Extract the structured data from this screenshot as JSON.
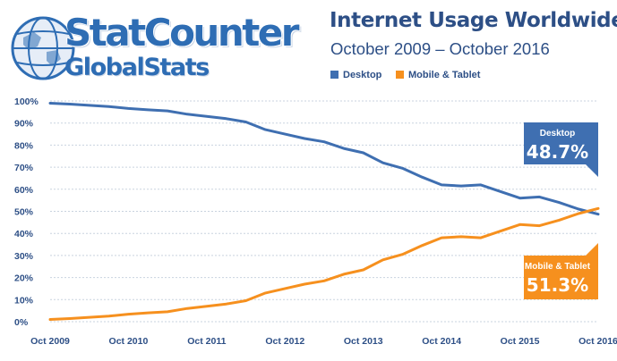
{
  "logo": {
    "line1": "StatCounter",
    "line2": "GlobalStats"
  },
  "colors": {
    "desktop": "#3f6fb1",
    "mobile": "#f6901e",
    "text": "#2d4f86",
    "grid": "#c9d3df"
  },
  "chart_data": {
    "type": "line",
    "title": "Internet Usage Worldwide",
    "subtitle": "October 2009 – October 2016",
    "x_tick_labels": [
      "Oct 2009",
      "Oct 2010",
      "Oct 2011",
      "Oct 2012",
      "Oct 2013",
      "Oct 2014",
      "Oct 2015",
      "Oct 2016"
    ],
    "y_tick_labels": [
      "0%",
      "10%",
      "20%",
      "30%",
      "40%",
      "50%",
      "60%",
      "70%",
      "80%",
      "90%",
      "100%"
    ],
    "ylim": [
      0,
      100
    ],
    "xlim": [
      "2009-10",
      "2016-10"
    ],
    "grid": true,
    "legend_placement": "top",
    "series": [
      {
        "name": "Desktop",
        "color": "#3f6fb1",
        "x": [
          "2009-10",
          "2010-01",
          "2010-04",
          "2010-07",
          "2010-10",
          "2011-01",
          "2011-04",
          "2011-07",
          "2011-10",
          "2012-01",
          "2012-04",
          "2012-07",
          "2012-10",
          "2013-01",
          "2013-04",
          "2013-07",
          "2013-10",
          "2014-01",
          "2014-04",
          "2014-07",
          "2014-10",
          "2015-01",
          "2015-04",
          "2015-07",
          "2015-10",
          "2016-01",
          "2016-04",
          "2016-07",
          "2016-10"
        ],
        "values": [
          99,
          98.6,
          98,
          97.5,
          96.6,
          96,
          95.5,
          94,
          93,
          92,
          90.5,
          87,
          85,
          83,
          81.5,
          78.5,
          76.5,
          72,
          69.5,
          65.5,
          62,
          61.5,
          62,
          59,
          56,
          56.5,
          54,
          51,
          48.7
        ]
      },
      {
        "name": "Mobile & Tablet",
        "color": "#f6901e",
        "x": [
          "2009-10",
          "2010-01",
          "2010-04",
          "2010-07",
          "2010-10",
          "2011-01",
          "2011-04",
          "2011-07",
          "2011-10",
          "2012-01",
          "2012-04",
          "2012-07",
          "2012-10",
          "2013-01",
          "2013-04",
          "2013-07",
          "2013-10",
          "2014-01",
          "2014-04",
          "2014-07",
          "2014-10",
          "2015-01",
          "2015-04",
          "2015-07",
          "2015-10",
          "2016-01",
          "2016-04",
          "2016-07",
          "2016-10"
        ],
        "values": [
          1,
          1.4,
          2,
          2.5,
          3.4,
          4,
          4.5,
          6,
          7,
          8,
          9.5,
          13,
          15,
          17,
          18.5,
          21.5,
          23.5,
          28,
          30.5,
          34.5,
          38,
          38.5,
          38,
          41,
          44,
          43.5,
          46,
          49,
          51.3
        ]
      }
    ],
    "annotations": [
      {
        "series": "Desktop",
        "label": "Desktop",
        "value": "48.7%"
      },
      {
        "series": "Mobile & Tablet",
        "label": "Mobile & Tablet",
        "value": "51.3%"
      }
    ]
  }
}
